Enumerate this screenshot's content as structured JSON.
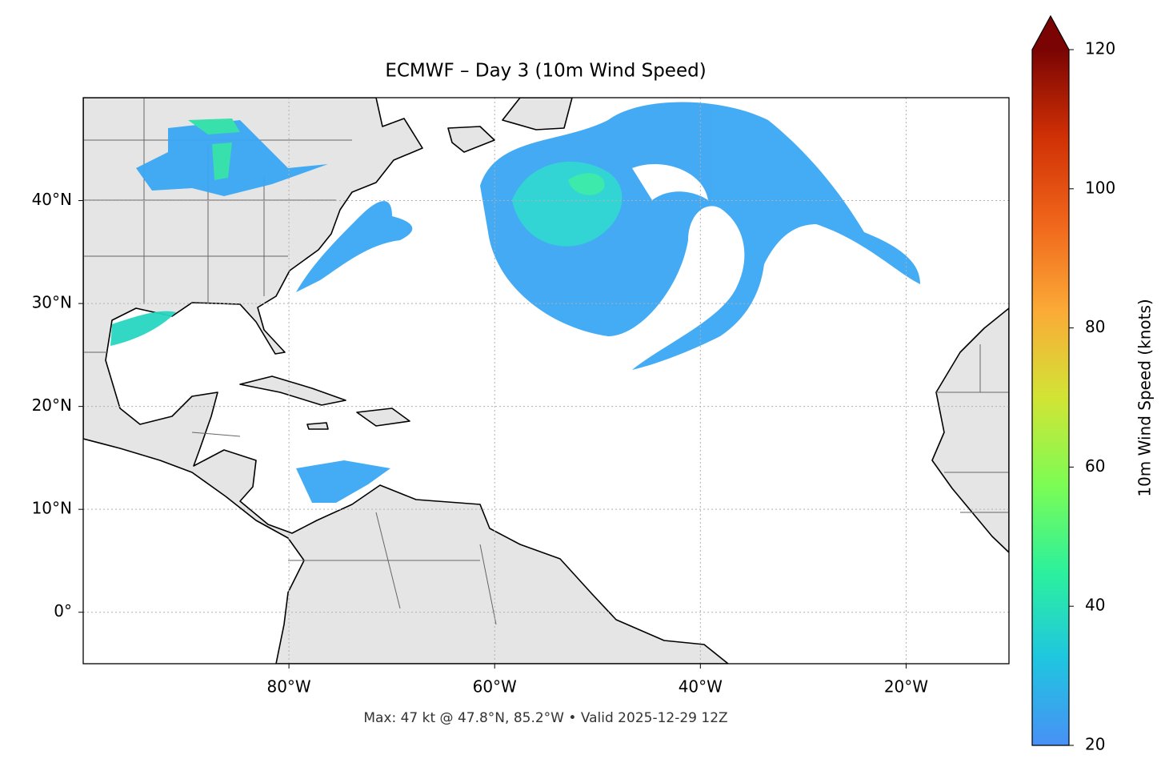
{
  "chart_data": {
    "type": "map",
    "title": "ECMWF – Day 3 (10m Wind Speed)",
    "footnote": "Max: 47 kt @ 47.8°N, 85.2°W • Valid 2025-12-29 12Z",
    "xlim": [
      -100,
      -10
    ],
    "ylim": [
      -5,
      50
    ],
    "xticks": [
      {
        "value": -80,
        "label": "80°W"
      },
      {
        "value": -60,
        "label": "60°W"
      },
      {
        "value": -40,
        "label": "40°W"
      },
      {
        "value": -20,
        "label": "20°W"
      }
    ],
    "yticks": [
      {
        "value": 0,
        "label": "0°"
      },
      {
        "value": 10,
        "label": "10°N"
      },
      {
        "value": 20,
        "label": "20°N"
      },
      {
        "value": 30,
        "label": "30°N"
      },
      {
        "value": 40,
        "label": "40°N"
      }
    ],
    "grid": true,
    "colorbar": {
      "label": "10m Wind Speed (knots)",
      "lim": [
        20,
        120
      ],
      "ticks": [
        20,
        40,
        60,
        80,
        100,
        120
      ],
      "colormap": [
        "#4890f6",
        "#1fc6e0",
        "#2cf19c",
        "#7dfc54",
        "#d2e435",
        "#fbaa37",
        "#f0661b",
        "#d03005",
        "#7a0403"
      ]
    }
  }
}
